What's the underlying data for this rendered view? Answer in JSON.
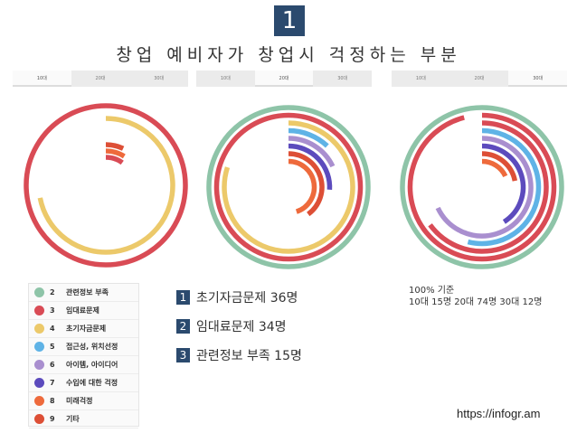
{
  "badge": "1",
  "title": "창업 예비자가 창업시 걱정하는 부분",
  "tabs": [
    "10대",
    "20대",
    "30대"
  ],
  "colors": {
    "2": "#8ec4a8",
    "3": "#d94b55",
    "4": "#ecc96a",
    "5": "#5fb3e6",
    "6": "#a98fcf",
    "7": "#5c4bbd",
    "8": "#ee6a3c",
    "9": "#dd4f36",
    "badge": "#2b4a6e"
  },
  "legend": [
    {
      "num": "2",
      "label": "관련정보 부족"
    },
    {
      "num": "3",
      "label": "임대료문제"
    },
    {
      "num": "4",
      "label": "초기자금문제"
    },
    {
      "num": "5",
      "label": "접근성, 위치선정"
    },
    {
      "num": "6",
      "label": "아이템, 아이디어"
    },
    {
      "num": "7",
      "label": "수입에 대한 걱정"
    },
    {
      "num": "8",
      "label": "미래걱정"
    },
    {
      "num": "9",
      "label": "기타"
    }
  ],
  "ranking": [
    {
      "num": "1",
      "text": "초기자금문제 36명"
    },
    {
      "num": "2",
      "text": "임대료문제 34명"
    },
    {
      "num": "3",
      "text": "관련정보 부족 15명"
    }
  ],
  "note": {
    "line1": "100% 기준",
    "line2": "10대 15명 20대 74명 30대 12명"
  },
  "source": "https://infogr.am",
  "chart_data": [
    {
      "type": "radial-bar",
      "group": "10대",
      "series": [
        {
          "code": "3",
          "value": 100
        },
        {
          "code": "4",
          "value": 72
        },
        {
          "code": "9",
          "value": 7
        },
        {
          "code": "8",
          "value": 9
        },
        {
          "code": "3",
          "value": 10
        }
      ]
    },
    {
      "type": "radial-bar",
      "group": "20대",
      "series": [
        {
          "code": "2",
          "value": 100
        },
        {
          "code": "3",
          "value": 100
        },
        {
          "code": "4",
          "value": 80
        },
        {
          "code": "5",
          "value": 12
        },
        {
          "code": "6",
          "value": 18
        },
        {
          "code": "7",
          "value": 26
        },
        {
          "code": "9",
          "value": 40
        },
        {
          "code": "8",
          "value": 45
        }
      ]
    },
    {
      "type": "radial-bar",
      "group": "30대",
      "series": [
        {
          "code": "2",
          "value": 100
        },
        {
          "code": "3",
          "value": 96
        },
        {
          "code": "3",
          "value": 65
        },
        {
          "code": "5",
          "value": 54
        },
        {
          "code": "6",
          "value": 68
        },
        {
          "code": "7",
          "value": 41
        },
        {
          "code": "9",
          "value": 22
        },
        {
          "code": "8",
          "value": 18
        }
      ]
    }
  ]
}
